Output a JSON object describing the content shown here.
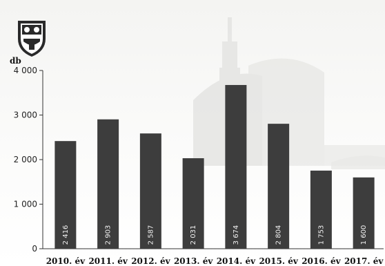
{
  "chart_data": {
    "type": "bar",
    "unit_label": "db",
    "categories": [
      "2010. év",
      "2011. év",
      "2012. év",
      "2013. év",
      "2014. év",
      "2015. év",
      "2016. év",
      "2017. év"
    ],
    "values": [
      2416,
      2903,
      2587,
      2031,
      3674,
      2804,
      1753,
      1600
    ],
    "value_labels": [
      "2 416",
      "2 903",
      "2 587",
      "2 031",
      "3 674",
      "2 804",
      "1 753",
      "1 600"
    ],
    "yticks": [
      0,
      1000,
      2000,
      3000,
      4000
    ],
    "ytick_labels": [
      "0",
      "1 000",
      "2 000",
      "3 000",
      "4 000"
    ],
    "ylim": [
      0,
      4000
    ],
    "bar_color": "#3d3d3d",
    "grid": false,
    "legend": "none"
  }
}
